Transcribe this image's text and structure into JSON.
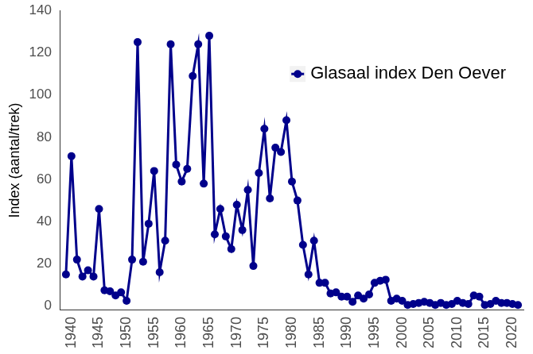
{
  "chart_data": {
    "type": "line",
    "y_label": "Index (aantal/trek)",
    "x": [
      1939,
      1940,
      1941,
      1942,
      1943,
      1944,
      1945,
      1946,
      1947,
      1948,
      1949,
      1950,
      1951,
      1952,
      1953,
      1954,
      1955,
      1956,
      1957,
      1958,
      1959,
      1960,
      1961,
      1962,
      1963,
      1964,
      1965,
      1966,
      1967,
      1968,
      1969,
      1970,
      1971,
      1972,
      1973,
      1974,
      1975,
      1976,
      1977,
      1978,
      1979,
      1980,
      1981,
      1982,
      1983,
      1984,
      1985,
      1986,
      1987,
      1988,
      1989,
      1990,
      1991,
      1992,
      1993,
      1994,
      1995,
      1996,
      1997,
      1998,
      1999,
      2000,
      2001,
      2002,
      2003,
      2004,
      2005,
      2006,
      2007,
      2008,
      2009,
      2010,
      2011,
      2012,
      2013,
      2014,
      2015,
      2016,
      2017,
      2018,
      2019,
      2020,
      2021
    ],
    "series": [
      {
        "name": "Glasaal index Den Oever",
        "color": "#00008b",
        "marker": "circle",
        "line_style": "solid",
        "values": [
          15,
          71,
          22,
          14,
          17,
          14,
          46,
          7.5,
          7,
          5,
          6.5,
          2.5,
          22,
          125,
          21,
          39,
          64,
          16,
          31,
          124,
          67,
          59,
          65,
          109,
          124,
          58,
          128,
          34,
          46,
          33,
          27,
          48,
          36,
          55,
          19,
          63,
          84,
          51,
          75,
          73,
          88,
          59,
          50,
          29,
          15,
          31,
          11,
          11,
          6,
          6.5,
          4.5,
          4.5,
          2,
          5,
          3.5,
          5.5,
          11,
          12,
          12.5,
          2.5,
          3.5,
          2.5,
          0.5,
          1,
          1.5,
          2,
          1.5,
          0.5,
          1.5,
          0.5,
          1,
          2.5,
          1.5,
          1,
          5,
          4.5,
          0.5,
          1,
          2.5,
          1.5,
          1.5,
          1,
          0.5
        ]
      }
    ],
    "xlim": [
      1938,
      2022
    ],
    "xticks": [
      1940,
      1945,
      1950,
      1955,
      1960,
      1965,
      1970,
      1975,
      1980,
      1985,
      1990,
      1995,
      2000,
      2005,
      2010,
      2015,
      2020
    ],
    "ylim": [
      -2,
      140
    ],
    "yticks": [
      0,
      20,
      40,
      60,
      80,
      100,
      120,
      140
    ],
    "grid": false,
    "legend": "upper right"
  }
}
